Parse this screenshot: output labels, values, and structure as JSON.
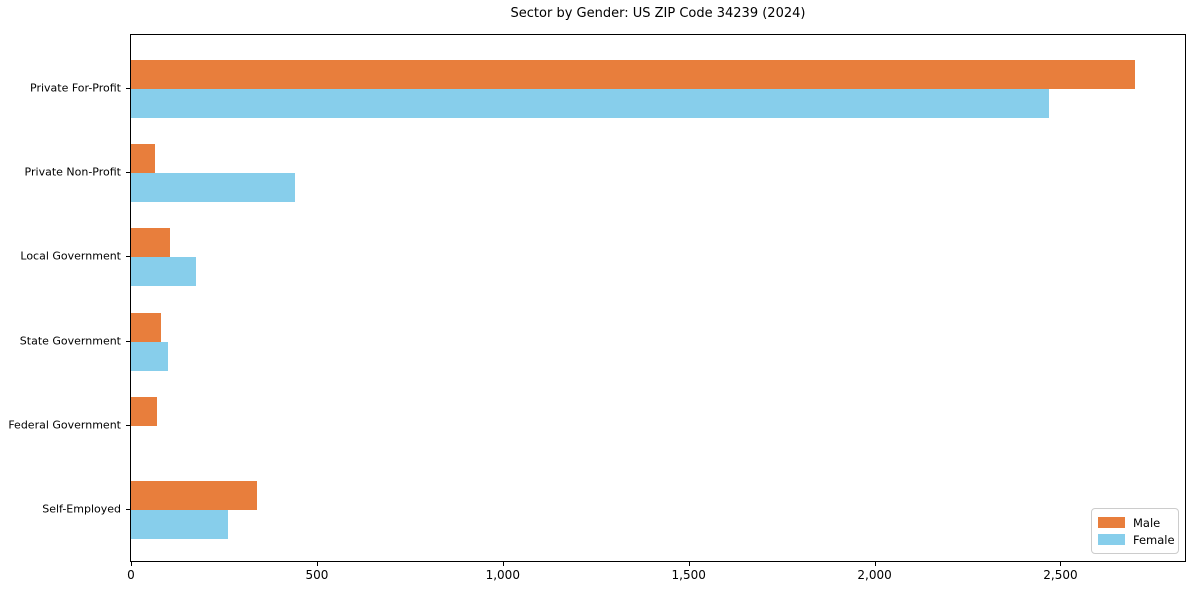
{
  "chart_data": {
    "type": "bar",
    "orientation": "horizontal",
    "title": "Sector by Gender: US ZIP Code 34239 (2024)",
    "categories": [
      "Private For-Profit",
      "Private Non-Profit",
      "Local Government",
      "State Government",
      "Federal Government",
      "Self-Employed"
    ],
    "series": [
      {
        "name": "Male",
        "color": "#e87e3c",
        "values": [
          2700,
          65,
          105,
          80,
          70,
          340
        ]
      },
      {
        "name": "Female",
        "color": "#87ceeb",
        "values": [
          2470,
          440,
          175,
          100,
          0,
          260
        ]
      }
    ],
    "xlabel": "",
    "ylabel": "",
    "xlim": [
      0,
      2835
    ],
    "xticks": [
      {
        "value": 0,
        "label": "0"
      },
      {
        "value": 500,
        "label": "500"
      },
      {
        "value": 1000,
        "label": "1,000"
      },
      {
        "value": 1500,
        "label": "1,500"
      },
      {
        "value": 2000,
        "label": "2,000"
      },
      {
        "value": 2500,
        "label": "2,500"
      }
    ],
    "grid": false,
    "legend": {
      "position": "lower right",
      "entries": [
        "Male",
        "Female"
      ]
    }
  }
}
